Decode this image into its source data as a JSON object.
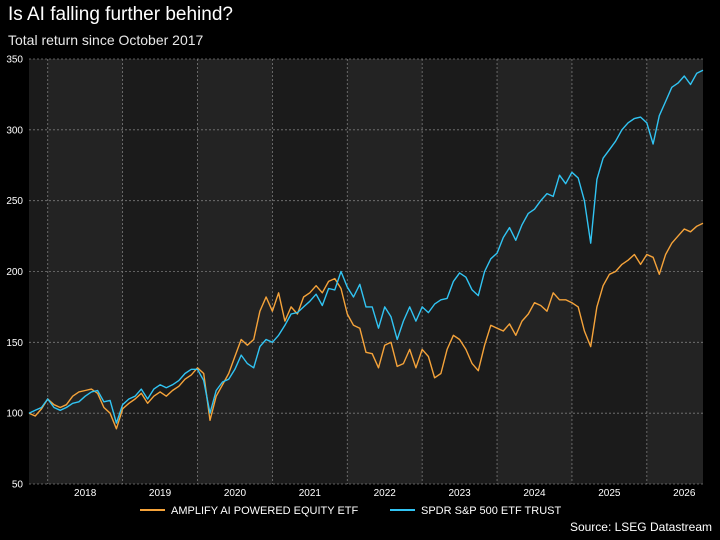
{
  "chart_data": {
    "type": "line",
    "title": "Is AI falling further behind?",
    "subtitle": "Total return since October 2017",
    "source": "Source: LSEG Datastream",
    "xlabel": "",
    "ylabel": "",
    "xlim": [
      "2017-10",
      "2026-10"
    ],
    "ylim": [
      50,
      350
    ],
    "yticks": [
      50,
      100,
      150,
      200,
      250,
      300,
      350
    ],
    "xtick_labels": [
      "2018",
      "2019",
      "2020",
      "2021",
      "2022",
      "2023",
      "2024",
      "2025",
      "2026"
    ],
    "grid": true,
    "legend_position": "bottom",
    "colors": {
      "background": "#000000",
      "plot_background": "#1b1b1b",
      "plot_band": "#232323",
      "grid": "#7a7a7a"
    },
    "series": [
      {
        "name": "AMPLIFY AI POWERED EQUITY ETF",
        "color": "#f5a33a",
        "points": [
          [
            "2017-10",
            100
          ],
          [
            "2017-11",
            98
          ],
          [
            "2017-12",
            103
          ],
          [
            "2018-01",
            110
          ],
          [
            "2018-02",
            106
          ],
          [
            "2018-03",
            104
          ],
          [
            "2018-04",
            106
          ],
          [
            "2018-05",
            112
          ],
          [
            "2018-06",
            115
          ],
          [
            "2018-07",
            116
          ],
          [
            "2018-08",
            117
          ],
          [
            "2018-09",
            114
          ],
          [
            "2018-10",
            104
          ],
          [
            "2018-11",
            100
          ],
          [
            "2018-12",
            89
          ],
          [
            "2019-01",
            103
          ],
          [
            "2019-02",
            107
          ],
          [
            "2019-03",
            110
          ],
          [
            "2019-04",
            114
          ],
          [
            "2019-05",
            107
          ],
          [
            "2019-06",
            112
          ],
          [
            "2019-07",
            115
          ],
          [
            "2019-08",
            112
          ],
          [
            "2019-09",
            116
          ],
          [
            "2019-10",
            119
          ],
          [
            "2019-11",
            124
          ],
          [
            "2019-12",
            127
          ],
          [
            "2020-01",
            132
          ],
          [
            "2020-02",
            128
          ],
          [
            "2020-03",
            95
          ],
          [
            "2020-04",
            112
          ],
          [
            "2020-05",
            120
          ],
          [
            "2020-06",
            128
          ],
          [
            "2020-07",
            140
          ],
          [
            "2020-08",
            152
          ],
          [
            "2020-09",
            148
          ],
          [
            "2020-10",
            152
          ],
          [
            "2020-11",
            172
          ],
          [
            "2020-12",
            182
          ],
          [
            "2021-01",
            172
          ],
          [
            "2021-02",
            185
          ],
          [
            "2021-03",
            165
          ],
          [
            "2021-04",
            175
          ],
          [
            "2021-05",
            170
          ],
          [
            "2021-06",
            182
          ],
          [
            "2021-07",
            185
          ],
          [
            "2021-08",
            190
          ],
          [
            "2021-09",
            185
          ],
          [
            "2021-10",
            193
          ],
          [
            "2021-11",
            195
          ],
          [
            "2021-12",
            188
          ],
          [
            "2022-01",
            170
          ],
          [
            "2022-02",
            162
          ],
          [
            "2022-03",
            160
          ],
          [
            "2022-04",
            143
          ],
          [
            "2022-05",
            142
          ],
          [
            "2022-06",
            132
          ],
          [
            "2022-07",
            148
          ],
          [
            "2022-08",
            150
          ],
          [
            "2022-09",
            133
          ],
          [
            "2022-10",
            135
          ],
          [
            "2022-11",
            145
          ],
          [
            "2022-12",
            132
          ],
          [
            "2023-01",
            145
          ],
          [
            "2023-02",
            140
          ],
          [
            "2023-03",
            125
          ],
          [
            "2023-04",
            128
          ],
          [
            "2023-05",
            145
          ],
          [
            "2023-06",
            155
          ],
          [
            "2023-07",
            152
          ],
          [
            "2023-08",
            145
          ],
          [
            "2023-09",
            135
          ],
          [
            "2023-10",
            130
          ],
          [
            "2023-11",
            148
          ],
          [
            "2023-12",
            162
          ],
          [
            "2024-01",
            160
          ],
          [
            "2024-02",
            158
          ],
          [
            "2024-03",
            163
          ],
          [
            "2024-04",
            155
          ],
          [
            "2024-05",
            165
          ],
          [
            "2024-06",
            170
          ],
          [
            "2024-07",
            178
          ],
          [
            "2024-08",
            176
          ],
          [
            "2024-09",
            172
          ],
          [
            "2024-10",
            185
          ],
          [
            "2024-11",
            180
          ],
          [
            "2024-12",
            180
          ],
          [
            "2025-01",
            178
          ],
          [
            "2025-02",
            175
          ],
          [
            "2025-03",
            158
          ],
          [
            "2025-04",
            147
          ],
          [
            "2025-05",
            175
          ],
          [
            "2025-06",
            190
          ],
          [
            "2025-07",
            198
          ],
          [
            "2025-08",
            200
          ],
          [
            "2025-09",
            205
          ],
          [
            "2025-10",
            208
          ],
          [
            "2025-11",
            212
          ],
          [
            "2025-12",
            205
          ],
          [
            "2026-01",
            212
          ],
          [
            "2026-02",
            210
          ],
          [
            "2026-03",
            198
          ],
          [
            "2026-04",
            212
          ],
          [
            "2026-05",
            220
          ],
          [
            "2026-06",
            225
          ],
          [
            "2026-07",
            230
          ],
          [
            "2026-08",
            228
          ],
          [
            "2026-09",
            232
          ],
          [
            "2026-10",
            234
          ]
        ]
      },
      {
        "name": "SPDR S&P 500 ETF TRUST",
        "color": "#31c4f3",
        "points": [
          [
            "2017-10",
            100
          ],
          [
            "2017-11",
            102
          ],
          [
            "2017-12",
            104
          ],
          [
            "2018-01",
            110
          ],
          [
            "2018-02",
            104
          ],
          [
            "2018-03",
            102
          ],
          [
            "2018-04",
            104
          ],
          [
            "2018-05",
            107
          ],
          [
            "2018-06",
            108
          ],
          [
            "2018-07",
            112
          ],
          [
            "2018-08",
            115
          ],
          [
            "2018-09",
            116
          ],
          [
            "2018-10",
            108
          ],
          [
            "2018-11",
            109
          ],
          [
            "2018-12",
            93
          ],
          [
            "2019-01",
            106
          ],
          [
            "2019-02",
            110
          ],
          [
            "2019-03",
            112
          ],
          [
            "2019-04",
            117
          ],
          [
            "2019-05",
            110
          ],
          [
            "2019-06",
            117
          ],
          [
            "2019-07",
            120
          ],
          [
            "2019-08",
            118
          ],
          [
            "2019-09",
            120
          ],
          [
            "2019-10",
            123
          ],
          [
            "2019-11",
            128
          ],
          [
            "2019-12",
            131
          ],
          [
            "2020-01",
            131
          ],
          [
            "2020-02",
            123
          ],
          [
            "2020-03",
            100
          ],
          [
            "2020-04",
            116
          ],
          [
            "2020-05",
            122
          ],
          [
            "2020-06",
            124
          ],
          [
            "2020-07",
            131
          ],
          [
            "2020-08",
            141
          ],
          [
            "2020-09",
            135
          ],
          [
            "2020-10",
            132
          ],
          [
            "2020-11",
            147
          ],
          [
            "2020-12",
            152
          ],
          [
            "2021-01",
            150
          ],
          [
            "2021-02",
            155
          ],
          [
            "2021-03",
            162
          ],
          [
            "2021-04",
            170
          ],
          [
            "2021-05",
            171
          ],
          [
            "2021-06",
            175
          ],
          [
            "2021-07",
            179
          ],
          [
            "2021-08",
            184
          ],
          [
            "2021-09",
            176
          ],
          [
            "2021-10",
            188
          ],
          [
            "2021-11",
            187
          ],
          [
            "2021-12",
            200
          ],
          [
            "2022-01",
            189
          ],
          [
            "2022-02",
            182
          ],
          [
            "2022-03",
            191
          ],
          [
            "2022-04",
            175
          ],
          [
            "2022-05",
            175
          ],
          [
            "2022-06",
            160
          ],
          [
            "2022-07",
            175
          ],
          [
            "2022-08",
            168
          ],
          [
            "2022-09",
            152
          ],
          [
            "2022-10",
            165
          ],
          [
            "2022-11",
            175
          ],
          [
            "2022-12",
            165
          ],
          [
            "2023-01",
            175
          ],
          [
            "2023-02",
            171
          ],
          [
            "2023-03",
            177
          ],
          [
            "2023-04",
            180
          ],
          [
            "2023-05",
            181
          ],
          [
            "2023-06",
            193
          ],
          [
            "2023-07",
            199
          ],
          [
            "2023-08",
            196
          ],
          [
            "2023-09",
            187
          ],
          [
            "2023-10",
            183
          ],
          [
            "2023-11",
            200
          ],
          [
            "2023-12",
            209
          ],
          [
            "2024-01",
            213
          ],
          [
            "2024-02",
            224
          ],
          [
            "2024-03",
            231
          ],
          [
            "2024-04",
            222
          ],
          [
            "2024-05",
            233
          ],
          [
            "2024-06",
            241
          ],
          [
            "2024-07",
            244
          ],
          [
            "2024-08",
            250
          ],
          [
            "2024-09",
            255
          ],
          [
            "2024-10",
            253
          ],
          [
            "2024-11",
            268
          ],
          [
            "2024-12",
            262
          ],
          [
            "2025-01",
            270
          ],
          [
            "2025-02",
            266
          ],
          [
            "2025-03",
            250
          ],
          [
            "2025-04",
            220
          ],
          [
            "2025-05",
            265
          ],
          [
            "2025-06",
            280
          ],
          [
            "2025-07",
            286
          ],
          [
            "2025-08",
            292
          ],
          [
            "2025-09",
            300
          ],
          [
            "2025-10",
            305
          ],
          [
            "2025-11",
            308
          ],
          [
            "2025-12",
            309
          ],
          [
            "2026-01",
            305
          ],
          [
            "2026-02",
            290
          ],
          [
            "2026-03",
            310
          ],
          [
            "2026-04",
            320
          ],
          [
            "2026-05",
            330
          ],
          [
            "2026-06",
            333
          ],
          [
            "2026-07",
            338
          ],
          [
            "2026-08",
            332
          ],
          [
            "2026-09",
            340
          ],
          [
            "2026-10",
            342
          ]
        ]
      }
    ]
  }
}
